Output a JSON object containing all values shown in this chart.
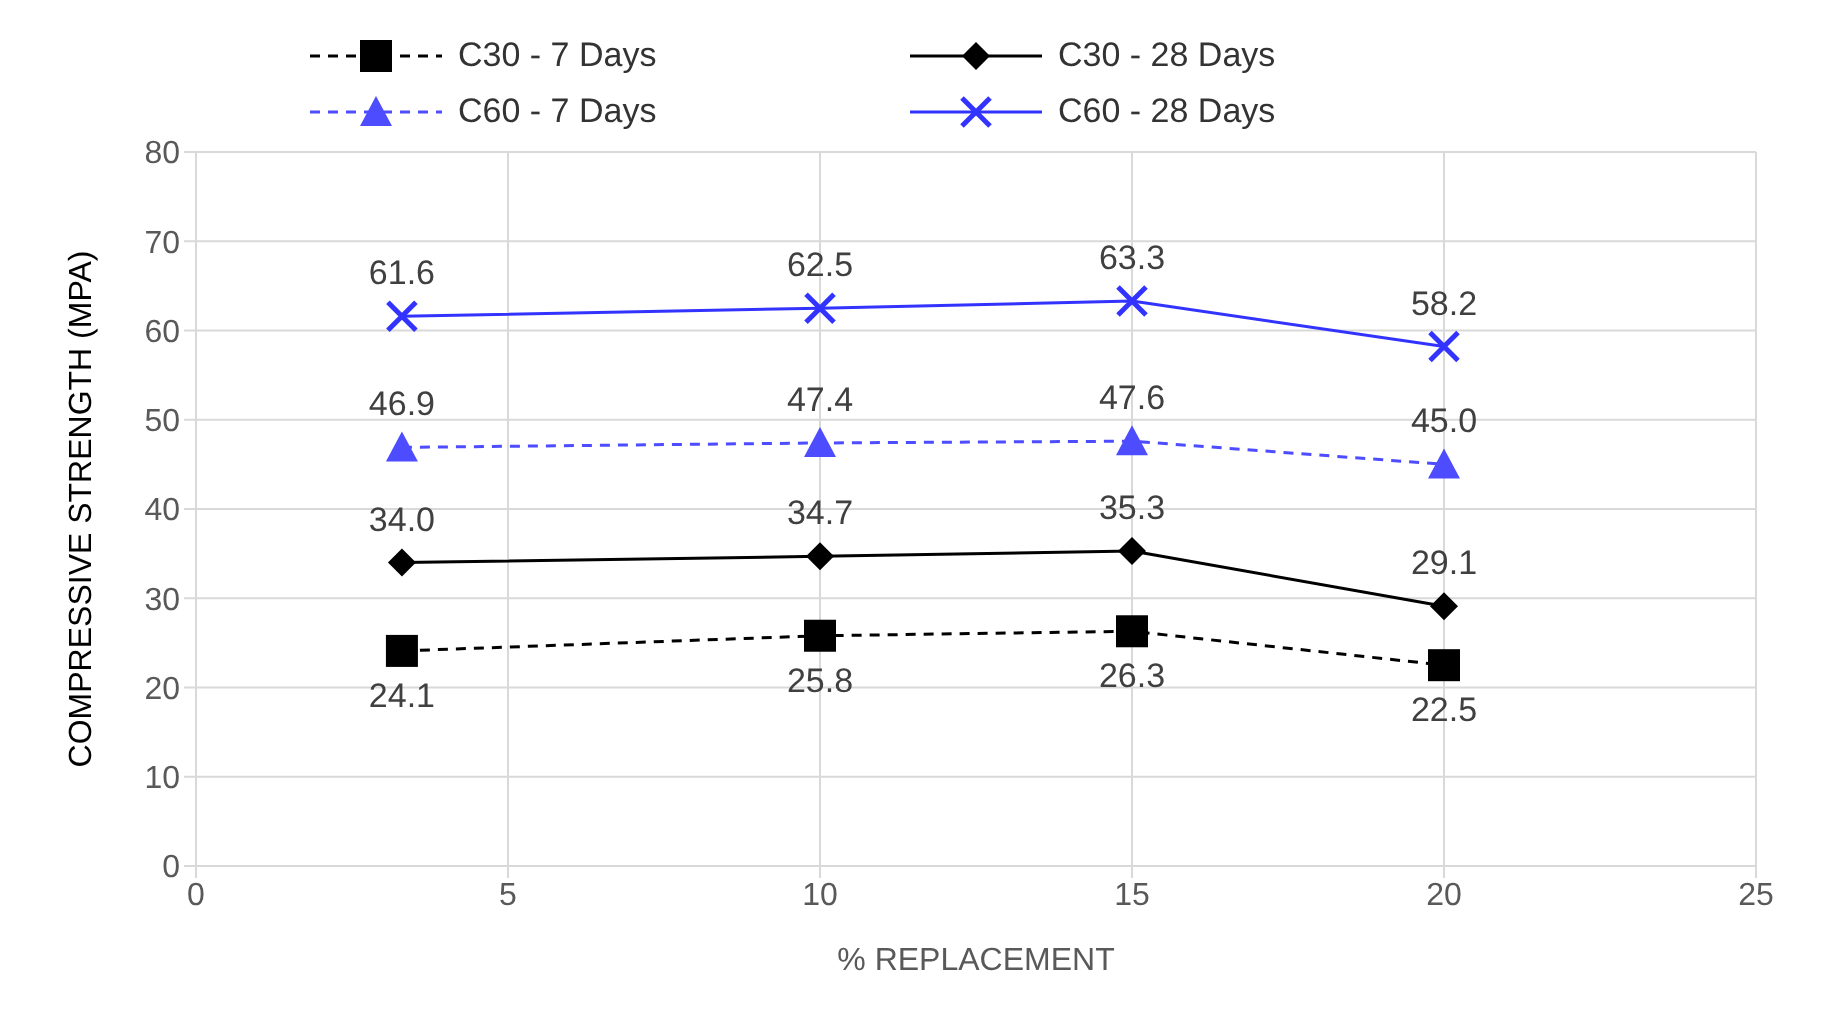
{
  "chart_data": {
    "type": "line",
    "xlabel": "% REPLACEMENT",
    "ylabel": "COMPRESSIVE STRENGTH (MPA)",
    "x": [
      3.3,
      10,
      15,
      20
    ],
    "xlim": [
      0,
      25
    ],
    "xticks": [
      0,
      5,
      10,
      15,
      20,
      25
    ],
    "ylim": [
      0,
      80
    ],
    "yticks": [
      0,
      10,
      20,
      30,
      40,
      50,
      60,
      70,
      80
    ],
    "grid": true,
    "legend": "top",
    "series": [
      {
        "name": "C30 - 7 Days",
        "color": "#000000",
        "values": [
          24.1,
          25.8,
          26.3,
          22.5
        ],
        "value_labels": [
          "24.1",
          "25.8",
          "26.3",
          "22.5"
        ],
        "marker": "square",
        "line_style": "dashed"
      },
      {
        "name": "C30 - 28 Days",
        "color": "#000000",
        "values": [
          34.0,
          34.7,
          35.3,
          29.1
        ],
        "value_labels": [
          "34.0",
          "34.7",
          "35.3",
          "29.1"
        ],
        "marker": "diamond",
        "line_style": "solid"
      },
      {
        "name": "C60 - 7 Days",
        "color": "#4d4dff",
        "values": [
          46.9,
          47.4,
          47.6,
          45.0
        ],
        "value_labels": [
          "46.9",
          "47.4",
          "47.6",
          "45.0"
        ],
        "marker": "triangle",
        "line_style": "dashed"
      },
      {
        "name": "C60 - 28 Days",
        "color": "#3333ff",
        "values": [
          61.6,
          62.5,
          63.3,
          58.2
        ],
        "value_labels": [
          "61.6",
          "62.5",
          "63.3",
          "58.2"
        ],
        "marker": "cross",
        "line_style": "solid"
      }
    ]
  }
}
